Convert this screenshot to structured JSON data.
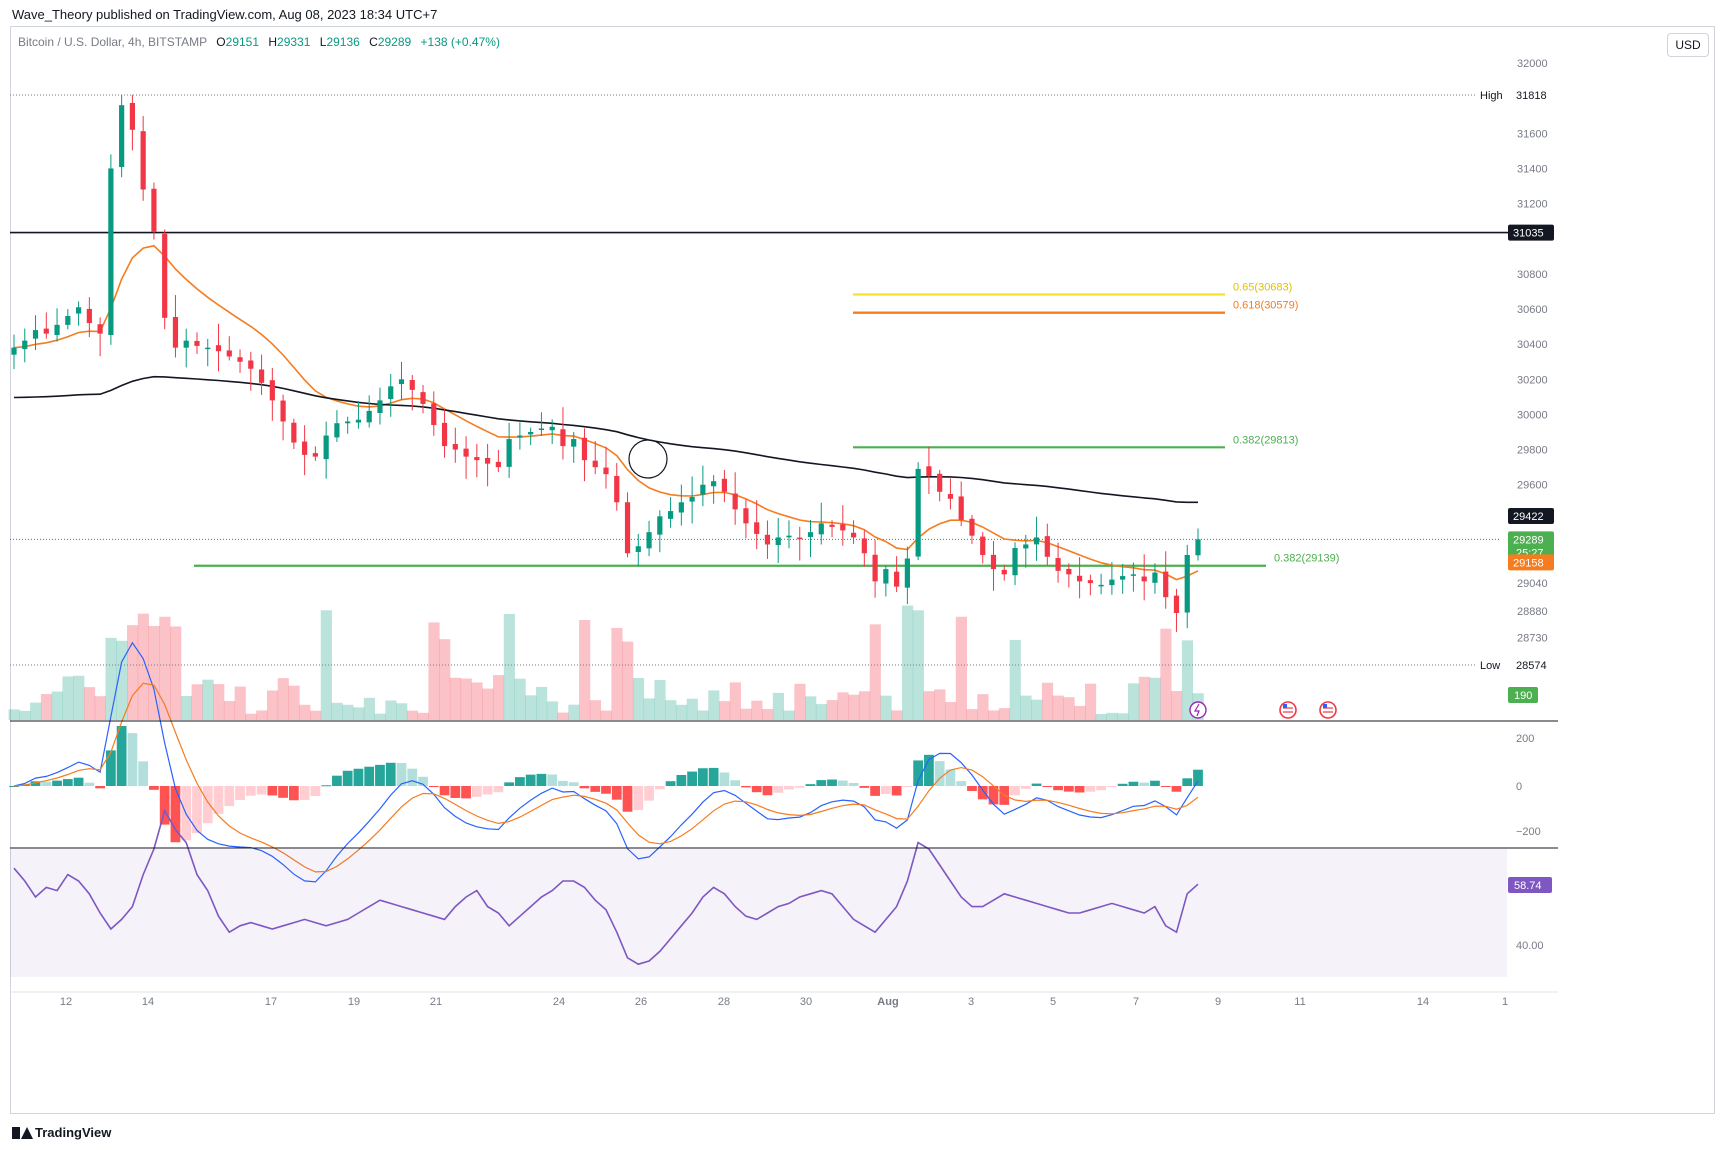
{
  "header": {
    "publisher_line": "Wave_Theory published on TradingView.com, Aug 08, 2023 18:34 UTC+7"
  },
  "legend": {
    "symbol": "Bitcoin / U.S. Dollar, 4h, BITSTAMP",
    "o_label": "O",
    "o": "29151",
    "h_label": "H",
    "h": "29331",
    "l_label": "L",
    "l": "29136",
    "c_label": "C",
    "c": "29289",
    "change": "+138 (+0.47%)"
  },
  "currency_button": "USD",
  "footer": {
    "brand": "TradingView"
  },
  "colors": {
    "up": "#089981",
    "down": "#f23645",
    "ema_fast": "#f57c1f",
    "ema_slow": "#131722",
    "fib_green": "#4caf50",
    "fib_orange": "#f57c1f",
    "fib_yellow": "#fbe22b",
    "macd": "#2962ff",
    "rsi": "#7e57c2"
  },
  "chart_data": [
    {
      "type": "candlestick",
      "x_ticks": [
        "12",
        "14",
        "17",
        "19",
        "21",
        "24",
        "26",
        "28",
        "30",
        "Aug",
        "3",
        "5",
        "7",
        "9",
        "11",
        "14",
        "1"
      ],
      "y_ticks": [
        "32000",
        "31600",
        "31400",
        "31200",
        "30800",
        "30600",
        "30400",
        "30200",
        "30000",
        "29800",
        "29600",
        "29040",
        "28880",
        "28730"
      ],
      "close_path": [
        30380,
        30420,
        30480,
        30460,
        30510,
        30560,
        30610,
        30520,
        30460,
        31400,
        31760,
        31620,
        31280,
        31040,
        30550,
        30380,
        30420,
        30390,
        30380,
        30360,
        30330,
        30300,
        30260,
        30180,
        30080,
        29960,
        29840,
        29770,
        29760,
        29880,
        29950,
        29960,
        29970,
        30020,
        30080,
        30160,
        30200,
        30140,
        30060,
        29940,
        29820,
        29800,
        29760,
        29740,
        29720,
        29700,
        29860,
        29880,
        29900,
        29920,
        29930,
        29820,
        29860,
        29740,
        29700,
        29660,
        29500,
        29210,
        29250,
        29330,
        29420,
        29450,
        29500,
        29530,
        29600,
        29620,
        29560,
        29460,
        29380,
        29320,
        29260,
        29300,
        29310,
        29290,
        29330,
        29380,
        29360,
        29340,
        29300,
        29210,
        29050,
        29120,
        29020,
        29180,
        29690,
        29650,
        29560,
        29520,
        29400,
        29310,
        29200,
        29120,
        29090,
        29240,
        29260,
        29300,
        29190,
        29110,
        29090,
        29050,
        29040,
        29030,
        29060,
        29080,
        29090,
        29050,
        29100,
        28960,
        28870,
        29200,
        29289
      ],
      "price_labels": {
        "high": {
          "label": "High",
          "value": "31818"
        },
        "low": {
          "label": "Low",
          "value": "28574"
        },
        "resistance": "31035",
        "ema200": "29422",
        "last": "29289",
        "countdown": "25:27",
        "ema50": "29158",
        "volume": "190"
      },
      "horizontal_levels": [
        {
          "value": 31035,
          "color": "#131722"
        },
        {
          "value": 30683,
          "label": "0.65(30683)",
          "color": "#fbe22b"
        },
        {
          "value": 30579,
          "label": "0.618(30579)",
          "color": "#f57c1f"
        },
        {
          "value": 29813,
          "label": "0.382(29813)",
          "color": "#4caf50"
        },
        {
          "value": 29139,
          "label": "0.382(29139)",
          "color": "#4caf50"
        }
      ],
      "overlays": [
        "EMA 50 (orange)",
        "EMA 200 (black)",
        "Volume"
      ]
    },
    {
      "type": "bar",
      "indicator": "MACD",
      "y_ticks": [
        "200",
        "0",
        "−200"
      ]
    },
    {
      "type": "line",
      "indicator": "RSI",
      "y_ticks": [
        "40.00"
      ],
      "last_value": "58.74",
      "values": [
        64,
        60,
        55,
        58,
        57,
        62,
        60,
        56,
        50,
        45,
        48,
        52,
        62,
        70,
        82,
        76,
        72,
        62,
        57,
        49,
        44,
        46,
        47,
        46,
        45,
        46,
        47,
        48,
        47,
        46,
        47,
        48,
        50,
        52,
        54,
        53,
        52,
        51,
        50,
        49,
        48,
        52,
        55,
        57,
        52,
        50,
        46,
        49,
        52,
        55,
        57,
        60,
        60,
        58,
        54,
        51,
        44,
        36,
        34,
        35,
        38,
        42,
        46,
        50,
        55,
        58,
        56,
        52,
        49,
        48,
        50,
        52,
        53,
        55,
        56,
        57,
        56,
        52,
        48,
        46,
        44,
        48,
        52,
        60,
        72,
        70,
        65,
        60,
        55,
        52,
        52,
        54,
        56,
        55,
        54,
        53,
        52,
        51,
        50,
        50,
        51,
        52,
        53,
        52,
        51,
        50,
        52,
        46,
        44,
        56,
        59
      ]
    }
  ]
}
